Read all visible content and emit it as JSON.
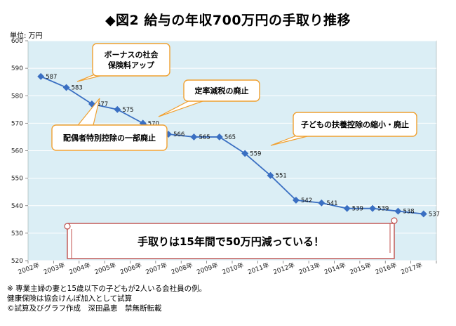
{
  "title": "◆図2 給与の年収700万円の手取り推移",
  "unit_label": "単位: 万円",
  "notes": [
    "※ 専業主婦の妻と15歳以下の子どもが2人いる会社員の例。",
    "健康保険は協会けんぽ加入として試算",
    "©試算及びグラフ作成　深田晶恵　禁無断転載"
  ],
  "colors": {
    "plot_bg": "#dbeef5",
    "grid": "#ffffff",
    "line": "#3a6fc2",
    "callout_border": "#f0a030",
    "callout_bg": "#ffffff",
    "scroll_border": "#c0504d"
  },
  "chart_data": {
    "type": "line",
    "title": "◆図2 給与の年収700万円の手取り推移",
    "xlabel": "",
    "ylabel": "単位: 万円",
    "categories": [
      "2002年",
      "2003年",
      "2004年",
      "2005年",
      "2006年",
      "2007年",
      "2008年",
      "2009年",
      "2010年",
      "2011年",
      "2012年",
      "2013年",
      "2014年",
      "2015年",
      "2016年",
      "2017年"
    ],
    "values": [
      587,
      583,
      577,
      575,
      570,
      566,
      565,
      565,
      559,
      551,
      542,
      541,
      539,
      539,
      538,
      537
    ],
    "ylim": [
      520,
      600
    ],
    "yticks": [
      520,
      530,
      540,
      550,
      560,
      570,
      580,
      590,
      600
    ],
    "grid": true,
    "annotations": [
      {
        "text_lines": [
          "ボーナスの社会",
          "保険料アップ"
        ]
      },
      {
        "text_lines": [
          "定率減税の廃止"
        ]
      },
      {
        "text_lines": [
          "配偶者特別控除の一部廃止"
        ]
      },
      {
        "text_lines": [
          "子どもの扶養控除の縮小・廃止"
        ]
      }
    ],
    "banner": "手取りは15年間で50万円減っている！"
  }
}
